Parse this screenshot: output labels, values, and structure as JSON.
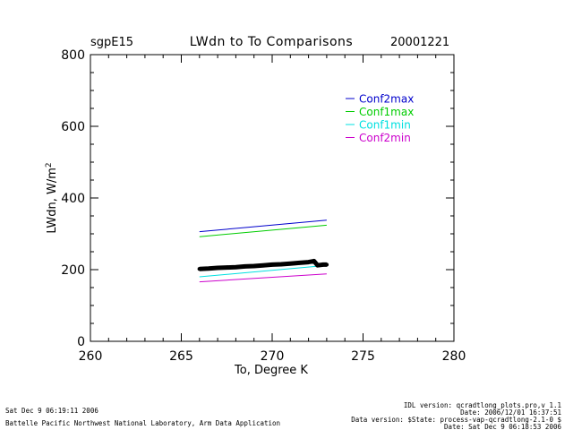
{
  "header": {
    "site": "sgpE15",
    "title": "LWdn to To Comparisons",
    "date": "20001221"
  },
  "footer": {
    "left_line1": "Sat Dec  9 06:19:11 2006",
    "left_line2": "Battelle Pacific Northwest National Laboratory, Arm Data Application",
    "right_line1": "IDL version: qcradtlong_plots.pro,v 1.1",
    "right_line2": "Date: 2006/12/01 16:37:51",
    "right_line3": "Data version: $State: process-vap-qcradtlong-2.1-0 $",
    "right_line4": "Date: Sat Dec  9 06:18:53 2006"
  },
  "chart_data": {
    "type": "line",
    "title": "LWdn to To Comparisons",
    "xlabel": "To, Degree K",
    "ylabel": "LWdn, W/m^2",
    "ylabel_base": "LWdn, W/m",
    "ylabel_sup": "2",
    "xlim": [
      260,
      280
    ],
    "ylim": [
      0,
      800
    ],
    "xticks": [
      260,
      265,
      270,
      275,
      280
    ],
    "yticks": [
      0,
      200,
      400,
      600,
      800
    ],
    "grid": false,
    "legend_position": "top-right",
    "series": [
      {
        "name": "Conf2max",
        "color": "#0000cc",
        "x": [
          266,
          273
        ],
        "y": [
          306,
          338
        ]
      },
      {
        "name": "Conf1max",
        "color": "#00cc00",
        "x": [
          266,
          273
        ],
        "y": [
          292,
          324
        ]
      },
      {
        "name": "Conf1min",
        "color": "#00e0e0",
        "x": [
          266,
          273
        ],
        "y": [
          180,
          212
        ]
      },
      {
        "name": "Conf2min",
        "color": "#cc00cc",
        "x": [
          266,
          273
        ],
        "y": [
          166,
          188
        ]
      }
    ],
    "observations": {
      "color": "#000000",
      "x": [
        266.0,
        266.5,
        267.0,
        267.5,
        268.0,
        268.5,
        269.0,
        269.5,
        270.0,
        270.5,
        271.0,
        271.5,
        272.0,
        272.3,
        272.5,
        272.8,
        273.0
      ],
      "y": [
        202,
        203,
        205,
        206,
        207,
        209,
        210,
        212,
        214,
        215,
        217,
        219,
        221,
        224,
        212,
        214,
        214
      ]
    }
  }
}
